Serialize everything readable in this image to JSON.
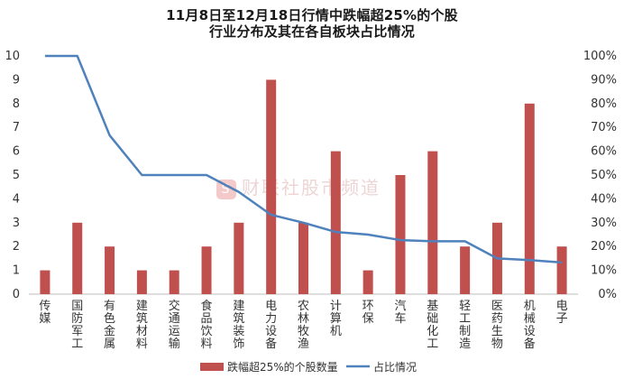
{
  "chart_data": {
    "type": "bar",
    "title_line1": "11月8日至12月18日行情中跌幅超25%的个股",
    "title_line2": "行业分布及其在各自板块占比情况",
    "categories": [
      "传媒",
      "国防军工",
      "有色金属",
      "建筑材料",
      "交通运输",
      "食品饮料",
      "建筑装饰",
      "电力设备",
      "农林牧渔",
      "计算机",
      "环保",
      "汽车",
      "基础化工",
      "轻工制造",
      "医药生物",
      "机械设备",
      "电子"
    ],
    "series": [
      {
        "name": "跌幅超25%的个股数量",
        "type": "bar",
        "axis": "left",
        "color": "#c0504d",
        "values": [
          1,
          3,
          2,
          1,
          1,
          2,
          3,
          9,
          3,
          6,
          1,
          5,
          6,
          2,
          3,
          8,
          2
        ]
      },
      {
        "name": "占比情况",
        "type": "line",
        "axis": "right",
        "color": "#4f81bd",
        "values": [
          100,
          100,
          66.7,
          50,
          50,
          50,
          42.9,
          33.3,
          30,
          26.1,
          25,
          22.7,
          22.2,
          22.2,
          15,
          14.3,
          13.3
        ]
      }
    ],
    "y_left": {
      "min": 0,
      "max": 10,
      "ticks": [
        "0",
        "1",
        "2",
        "3",
        "4",
        "5",
        "6",
        "7",
        "8",
        "9",
        "10"
      ]
    },
    "y_right": {
      "min": 0,
      "max": 100,
      "ticks": [
        "0%",
        "10%",
        "20%",
        "30%",
        "40%",
        "50%",
        "60%",
        "70%",
        "80%",
        "90%",
        "100%"
      ]
    },
    "grid": false,
    "legend_position": "bottom"
  },
  "watermark": {
    "logo": "S",
    "text": "财联社股市频道"
  }
}
